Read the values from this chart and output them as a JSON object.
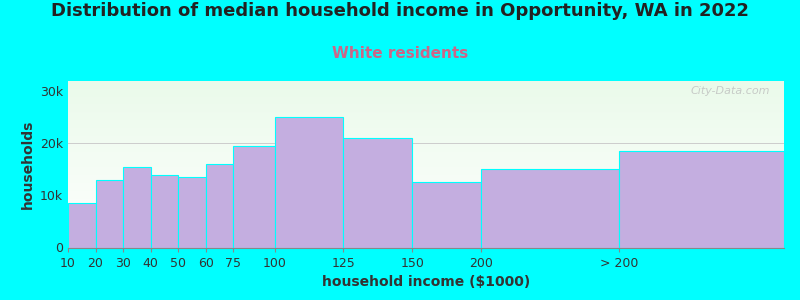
{
  "title": "Distribution of median household income in Opportunity, WA in 2022",
  "subtitle": "White residents",
  "xlabel": "household income ($1000)",
  "ylabel": "households",
  "background_color": "#00FFFF",
  "bar_color": "#C4AEE0",
  "categories": [
    "10",
    "20",
    "30",
    "40",
    "50",
    "60",
    "75",
    "100",
    "125",
    "150",
    "200",
    "> 200"
  ],
  "values": [
    8500,
    13000,
    15500,
    14000,
    13500,
    16000,
    19500,
    25000,
    21000,
    12500,
    15000,
    18500
  ],
  "bin_edges": [
    0,
    10,
    20,
    30,
    40,
    50,
    60,
    75,
    100,
    125,
    150,
    200,
    260
  ],
  "ylim": [
    0,
    32000
  ],
  "yticks": [
    0,
    10000,
    20000,
    30000
  ],
  "ytick_labels": [
    "0",
    "10k",
    "20k",
    "30k"
  ],
  "title_fontsize": 13,
  "subtitle_fontsize": 11,
  "subtitle_color": "#CC6688",
  "axis_label_fontsize": 10,
  "tick_fontsize": 9,
  "watermark": "City-Data.com",
  "plot_bg_top": "#eafaea",
  "plot_bg_bottom": "#ffffff"
}
